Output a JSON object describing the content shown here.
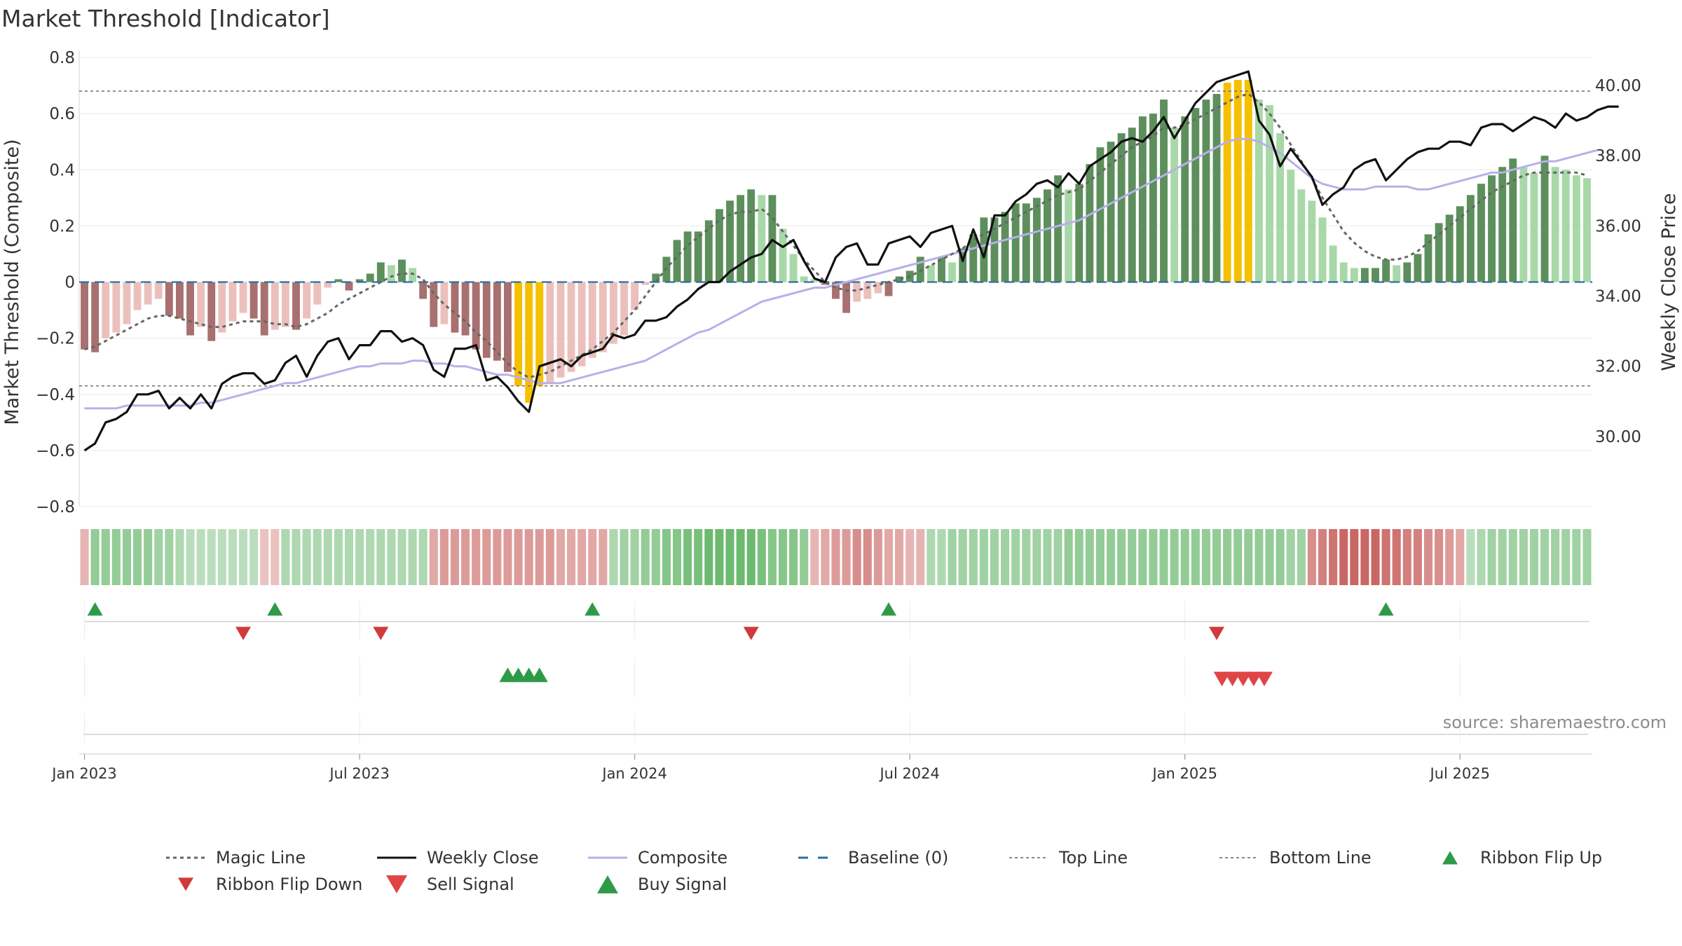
{
  "title": "Market Threshold [Indicator]",
  "source": "source: sharemaestro.com",
  "colors": {
    "bar_pos_strong": "#5c8f5c",
    "bar_pos_light": "#a8d8a8",
    "bar_neg_strong": "#a87070",
    "bar_neg_light": "#ebc0bc",
    "bar_extreme": "#f5c000",
    "magic": "#666666",
    "close": "#111111",
    "composite": "#b8b0e8",
    "baseline": "#2a6fa0",
    "threshold": "#777777",
    "buy": "#2e9a48",
    "sell": "#d63a3a",
    "axis": "#cccccc"
  },
  "chart_data": {
    "type": "bar",
    "title": "Market Threshold [Indicator]",
    "ylabel_left": "Market Threshold (Composite)",
    "ylabel_right": "Weekly Close Price",
    "ylim_left": [
      -0.8,
      0.8
    ],
    "ylim_right": [
      28.0,
      40.8
    ],
    "left_ticks": [
      0.8,
      0.6,
      0.4,
      0.2,
      0,
      -0.2,
      -0.4,
      -0.6,
      -0.8
    ],
    "left_tick_labels": [
      "0.8",
      "0.6",
      "0.4",
      "0.2",
      "0",
      "−0.2",
      "−0.4",
      "−0.6",
      "−0.8"
    ],
    "right_ticks": [
      40,
      38,
      36,
      34,
      32,
      30
    ],
    "right_tick_labels": [
      "40.00",
      "38.00",
      "36.00",
      "34.00",
      "32.00",
      "30.00"
    ],
    "x_ticks": [
      {
        "week": 1,
        "label": "Jan 2023"
      },
      {
        "week": 27,
        "label": "Jul 2023"
      },
      {
        "week": 53,
        "label": "Jan 2024"
      },
      {
        "week": 79,
        "label": "Jul 2024"
      },
      {
        "week": 105,
        "label": "Jan 2025"
      },
      {
        "week": 131,
        "label": "Jul 2025"
      }
    ],
    "top_line": 0.68,
    "bottom_line": -0.37,
    "baseline": 0,
    "bars": [
      -0.24,
      -0.25,
      -0.2,
      -0.18,
      -0.15,
      -0.1,
      -0.08,
      -0.06,
      -0.12,
      -0.13,
      -0.19,
      -0.16,
      -0.21,
      -0.18,
      -0.14,
      -0.11,
      -0.13,
      -0.19,
      -0.17,
      -0.16,
      -0.17,
      -0.13,
      -0.08,
      -0.02,
      0.01,
      -0.03,
      0.01,
      0.03,
      0.07,
      0.06,
      0.08,
      0.05,
      -0.06,
      -0.16,
      -0.15,
      -0.18,
      -0.19,
      -0.24,
      -0.27,
      -0.28,
      -0.32,
      -0.37,
      -0.43,
      -0.37,
      -0.36,
      -0.34,
      -0.32,
      -0.3,
      -0.27,
      -0.25,
      -0.22,
      -0.19,
      -0.1,
      -0.01,
      0.03,
      0.09,
      0.15,
      0.18,
      0.18,
      0.22,
      0.26,
      0.29,
      0.31,
      0.33,
      0.31,
      0.31,
      0.19,
      0.1,
      0.02,
      0.01,
      -0.01,
      -0.06,
      -0.11,
      -0.07,
      -0.06,
      -0.04,
      -0.05,
      0.02,
      0.04,
      0.09,
      0.06,
      0.09,
      0.07,
      0.12,
      0.17,
      0.23,
      0.23,
      0.25,
      0.28,
      0.28,
      0.3,
      0.33,
      0.38,
      0.33,
      0.35,
      0.42,
      0.48,
      0.5,
      0.53,
      0.55,
      0.59,
      0.6,
      0.65,
      0.55,
      0.59,
      0.62,
      0.65,
      0.67,
      0.71,
      0.72,
      0.72,
      0.65,
      0.63,
      0.53,
      0.4,
      0.33,
      0.29,
      0.23,
      0.13,
      0.07,
      0.05,
      0.05,
      0.05,
      0.08,
      0.06,
      0.07,
      0.1,
      0.17,
      0.21,
      0.24,
      0.27,
      0.31,
      0.35,
      0.38,
      0.41,
      0.44,
      0.41,
      0.39,
      0.45,
      0.41,
      0.4,
      0.38,
      0.37
    ],
    "bar_series": {
      "magic_line": [
        -0.24,
        -0.23,
        -0.21,
        -0.19,
        -0.17,
        -0.15,
        -0.13,
        -0.12,
        -0.12,
        -0.13,
        -0.14,
        -0.15,
        -0.16,
        -0.16,
        -0.15,
        -0.14,
        -0.14,
        -0.14,
        -0.15,
        -0.15,
        -0.16,
        -0.15,
        -0.13,
        -0.11,
        -0.08,
        -0.06,
        -0.04,
        -0.02,
        0.0,
        0.02,
        0.03,
        0.03,
        0.01,
        -0.04,
        -0.08,
        -0.11,
        -0.14,
        -0.18,
        -0.21,
        -0.25,
        -0.29,
        -0.32,
        -0.34,
        -0.33,
        -0.32,
        -0.3,
        -0.28,
        -0.26,
        -0.24,
        -0.21,
        -0.18,
        -0.14,
        -0.1,
        -0.05,
        0.0,
        0.05,
        0.09,
        0.13,
        0.16,
        0.19,
        0.22,
        0.24,
        0.25,
        0.25,
        0.26,
        0.23,
        0.18,
        0.13,
        0.08,
        0.04,
        0.0,
        -0.02,
        -0.03,
        -0.03,
        -0.02,
        -0.01,
        0.0,
        0.01,
        0.02,
        0.04,
        0.06,
        0.08,
        0.1,
        0.12,
        0.15,
        0.17,
        0.19,
        0.21,
        0.23,
        0.25,
        0.27,
        0.29,
        0.31,
        0.32,
        0.33,
        0.36,
        0.39,
        0.42,
        0.45,
        0.48,
        0.5,
        0.52,
        0.55,
        0.55,
        0.56,
        0.58,
        0.6,
        0.62,
        0.64,
        0.66,
        0.67,
        0.64,
        0.6,
        0.55,
        0.49,
        0.43,
        0.37,
        0.3,
        0.24,
        0.18,
        0.14,
        0.11,
        0.09,
        0.08,
        0.08,
        0.09,
        0.11,
        0.14,
        0.17,
        0.2,
        0.23,
        0.26,
        0.29,
        0.32,
        0.34,
        0.36,
        0.38,
        0.39,
        0.39,
        0.39,
        0.39,
        0.39,
        0.38
      ],
      "composite": [
        -0.45,
        -0.45,
        -0.45,
        -0.45,
        -0.44,
        -0.44,
        -0.44,
        -0.44,
        -0.44,
        -0.44,
        -0.44,
        -0.43,
        -0.43,
        -0.42,
        -0.41,
        -0.4,
        -0.39,
        -0.38,
        -0.37,
        -0.36,
        -0.36,
        -0.35,
        -0.34,
        -0.33,
        -0.32,
        -0.31,
        -0.3,
        -0.3,
        -0.29,
        -0.29,
        -0.29,
        -0.28,
        -0.28,
        -0.29,
        -0.29,
        -0.3,
        -0.3,
        -0.31,
        -0.32,
        -0.33,
        -0.33,
        -0.34,
        -0.35,
        -0.36,
        -0.36,
        -0.36,
        -0.35,
        -0.34,
        -0.33,
        -0.32,
        -0.31,
        -0.3,
        -0.29,
        -0.28,
        -0.26,
        -0.24,
        -0.22,
        -0.2,
        -0.18,
        -0.17,
        -0.15,
        -0.13,
        -0.11,
        -0.09,
        -0.07,
        -0.06,
        -0.05,
        -0.04,
        -0.03,
        -0.02,
        -0.02,
        -0.01,
        0.0,
        0.01,
        0.02,
        0.03,
        0.04,
        0.05,
        0.06,
        0.07,
        0.08,
        0.09,
        0.1,
        0.11,
        0.12,
        0.13,
        0.14,
        0.15,
        0.16,
        0.17,
        0.18,
        0.19,
        0.2,
        0.21,
        0.22,
        0.24,
        0.26,
        0.28,
        0.3,
        0.32,
        0.34,
        0.36,
        0.38,
        0.4,
        0.42,
        0.44,
        0.46,
        0.48,
        0.5,
        0.51,
        0.51,
        0.5,
        0.48,
        0.46,
        0.43,
        0.4,
        0.37,
        0.35,
        0.34,
        0.33,
        0.33,
        0.33,
        0.34,
        0.34,
        0.34,
        0.34,
        0.33,
        0.33,
        0.34,
        0.35,
        0.36,
        0.37,
        0.38,
        0.39,
        0.39,
        0.4,
        0.41,
        0.42,
        0.43,
        0.43,
        0.44,
        0.45,
        0.46,
        0.47
      ],
      "weekly_close": [
        29.6,
        29.8,
        30.4,
        30.5,
        30.7,
        31.2,
        31.2,
        31.3,
        30.8,
        31.1,
        30.8,
        31.2,
        30.8,
        31.5,
        31.7,
        31.8,
        31.8,
        31.5,
        31.6,
        32.1,
        32.3,
        31.7,
        32.3,
        32.7,
        32.8,
        32.2,
        32.6,
        32.6,
        33.0,
        33.0,
        32.7,
        32.8,
        32.6,
        31.9,
        31.7,
        32.5,
        32.5,
        32.6,
        31.6,
        31.7,
        31.4,
        31.0,
        30.7,
        32.0,
        32.1,
        32.2,
        32.0,
        32.3,
        32.4,
        32.5,
        32.9,
        32.8,
        32.9,
        33.3,
        33.3,
        33.4,
        33.7,
        33.9,
        34.2,
        34.4,
        34.4,
        34.7,
        34.9,
        35.1,
        35.2,
        35.6,
        35.4,
        35.6,
        35.0,
        34.5,
        34.4,
        35.1,
        35.4,
        35.5,
        34.9,
        34.9,
        35.5,
        35.6,
        35.7,
        35.4,
        35.8,
        35.9,
        36.0,
        35.0,
        35.9,
        35.1,
        36.3,
        36.3,
        36.7,
        36.9,
        37.2,
        37.3,
        37.1,
        37.5,
        37.2,
        37.7,
        37.9,
        38.1,
        38.4,
        38.5,
        38.4,
        38.7,
        39.1,
        38.5,
        39.0,
        39.5,
        39.8,
        40.1,
        40.2,
        40.3,
        40.4,
        39.0,
        38.6,
        37.7,
        38.2,
        37.8,
        37.4,
        36.6,
        36.9,
        37.1,
        37.6,
        37.8,
        37.9,
        37.3,
        37.6,
        37.9,
        38.1,
        38.2,
        38.2,
        38.4,
        38.4,
        38.3,
        38.8,
        38.9,
        38.9,
        38.7,
        38.9,
        39.1,
        39.0,
        38.8,
        39.2,
        39.0,
        39.1,
        39.3,
        39.4,
        39.4
      ]
    },
    "ribbon": [
      -1,
      1,
      1,
      1,
      1,
      1,
      1,
      1,
      1,
      1,
      1,
      1,
      1,
      1,
      1,
      1,
      1,
      -1,
      -1,
      1,
      1,
      1,
      1,
      1,
      1,
      1,
      1,
      1,
      1,
      1,
      1,
      1,
      1,
      -1,
      -1,
      -1,
      -1,
      -1,
      -1,
      -1,
      -1,
      -1,
      -1,
      -1,
      -1,
      -1,
      -1,
      -1,
      -1,
      -1,
      1,
      1,
      1,
      1,
      1,
      1,
      1,
      1,
      1,
      1,
      1,
      1,
      1,
      1,
      1,
      1,
      1,
      1,
      1,
      -1,
      -1,
      -1,
      -1,
      -1,
      -1,
      -1,
      -1,
      -1,
      -1,
      -1,
      1,
      1,
      1,
      1,
      1,
      1,
      1,
      1,
      1,
      1,
      1,
      1,
      1,
      1,
      1,
      1,
      1,
      1,
      1,
      1,
      1,
      1,
      1,
      1,
      1,
      1,
      1,
      1,
      1,
      1,
      1,
      1,
      1,
      1,
      1,
      1,
      -1,
      -1,
      -1,
      -1,
      -1,
      -1,
      -1,
      -1,
      -1,
      -1,
      -1,
      -1,
      -1,
      -1,
      -1,
      1,
      1,
      1,
      1,
      1,
      1,
      1,
      1,
      1,
      1,
      1,
      1
    ],
    "ribbon_intensity": [
      0.3,
      0.6,
      0.6,
      0.6,
      0.6,
      0.6,
      0.6,
      0.5,
      0.5,
      0.4,
      0.3,
      0.3,
      0.3,
      0.3,
      0.3,
      0.3,
      0.3,
      0.2,
      0.2,
      0.4,
      0.4,
      0.4,
      0.4,
      0.4,
      0.4,
      0.4,
      0.4,
      0.4,
      0.4,
      0.4,
      0.4,
      0.4,
      0.4,
      0.4,
      0.5,
      0.5,
      0.5,
      0.5,
      0.5,
      0.5,
      0.5,
      0.5,
      0.5,
      0.5,
      0.5,
      0.4,
      0.4,
      0.4,
      0.4,
      0.4,
      0.4,
      0.5,
      0.5,
      0.6,
      0.6,
      0.7,
      0.7,
      0.8,
      0.8,
      0.9,
      0.9,
      0.9,
      0.9,
      0.9,
      0.8,
      0.7,
      0.7,
      0.7,
      0.6,
      0.3,
      0.4,
      0.5,
      0.5,
      0.6,
      0.6,
      0.5,
      0.4,
      0.4,
      0.3,
      0.3,
      0.4,
      0.4,
      0.5,
      0.5,
      0.5,
      0.5,
      0.5,
      0.5,
      0.5,
      0.5,
      0.5,
      0.5,
      0.5,
      0.6,
      0.6,
      0.6,
      0.6,
      0.6,
      0.6,
      0.6,
      0.6,
      0.6,
      0.6,
      0.6,
      0.6,
      0.6,
      0.6,
      0.6,
      0.6,
      0.6,
      0.6,
      0.6,
      0.6,
      0.6,
      0.5,
      0.5,
      0.6,
      0.7,
      0.8,
      0.9,
      0.9,
      0.9,
      0.9,
      0.8,
      0.8,
      0.7,
      0.7,
      0.6,
      0.6,
      0.5,
      0.4,
      0.3,
      0.4,
      0.5,
      0.5,
      0.5,
      0.5,
      0.5,
      0.5,
      0.5,
      0.5,
      0.5,
      0.5,
      0.5
    ],
    "ribbon_flip_up": [
      2,
      19,
      49,
      77,
      124
    ],
    "ribbon_flip_down": [
      16,
      29,
      64,
      108
    ],
    "buy_signals": [
      40.5,
      41.5,
      42.5,
      43.5
    ],
    "sell_signals": [
      108,
      109,
      110,
      111,
      112
    ]
  },
  "legend": [
    {
      "key": "magic",
      "label": "Magic Line",
      "icon": "dotted-line"
    },
    {
      "key": "close",
      "label": "Weekly Close",
      "icon": "solid-line"
    },
    {
      "key": "composite",
      "label": "Composite",
      "icon": "solid-line-light"
    },
    {
      "key": "baseline",
      "label": "Baseline (0)",
      "icon": "dashed-line"
    },
    {
      "key": "top",
      "label": "Top Line",
      "icon": "fine-dotted-line"
    },
    {
      "key": "bottom",
      "label": "Bottom Line",
      "icon": "fine-dotted-line"
    },
    {
      "key": "flip_up",
      "label": "Ribbon Flip Up",
      "icon": "triangle-up"
    },
    {
      "key": "flip_down",
      "label": "Ribbon Flip Down",
      "icon": "triangle-down"
    },
    {
      "key": "sell",
      "label": "Sell Signal",
      "icon": "triangle-down"
    },
    {
      "key": "buy",
      "label": "Buy Signal",
      "icon": "triangle-up"
    }
  ]
}
